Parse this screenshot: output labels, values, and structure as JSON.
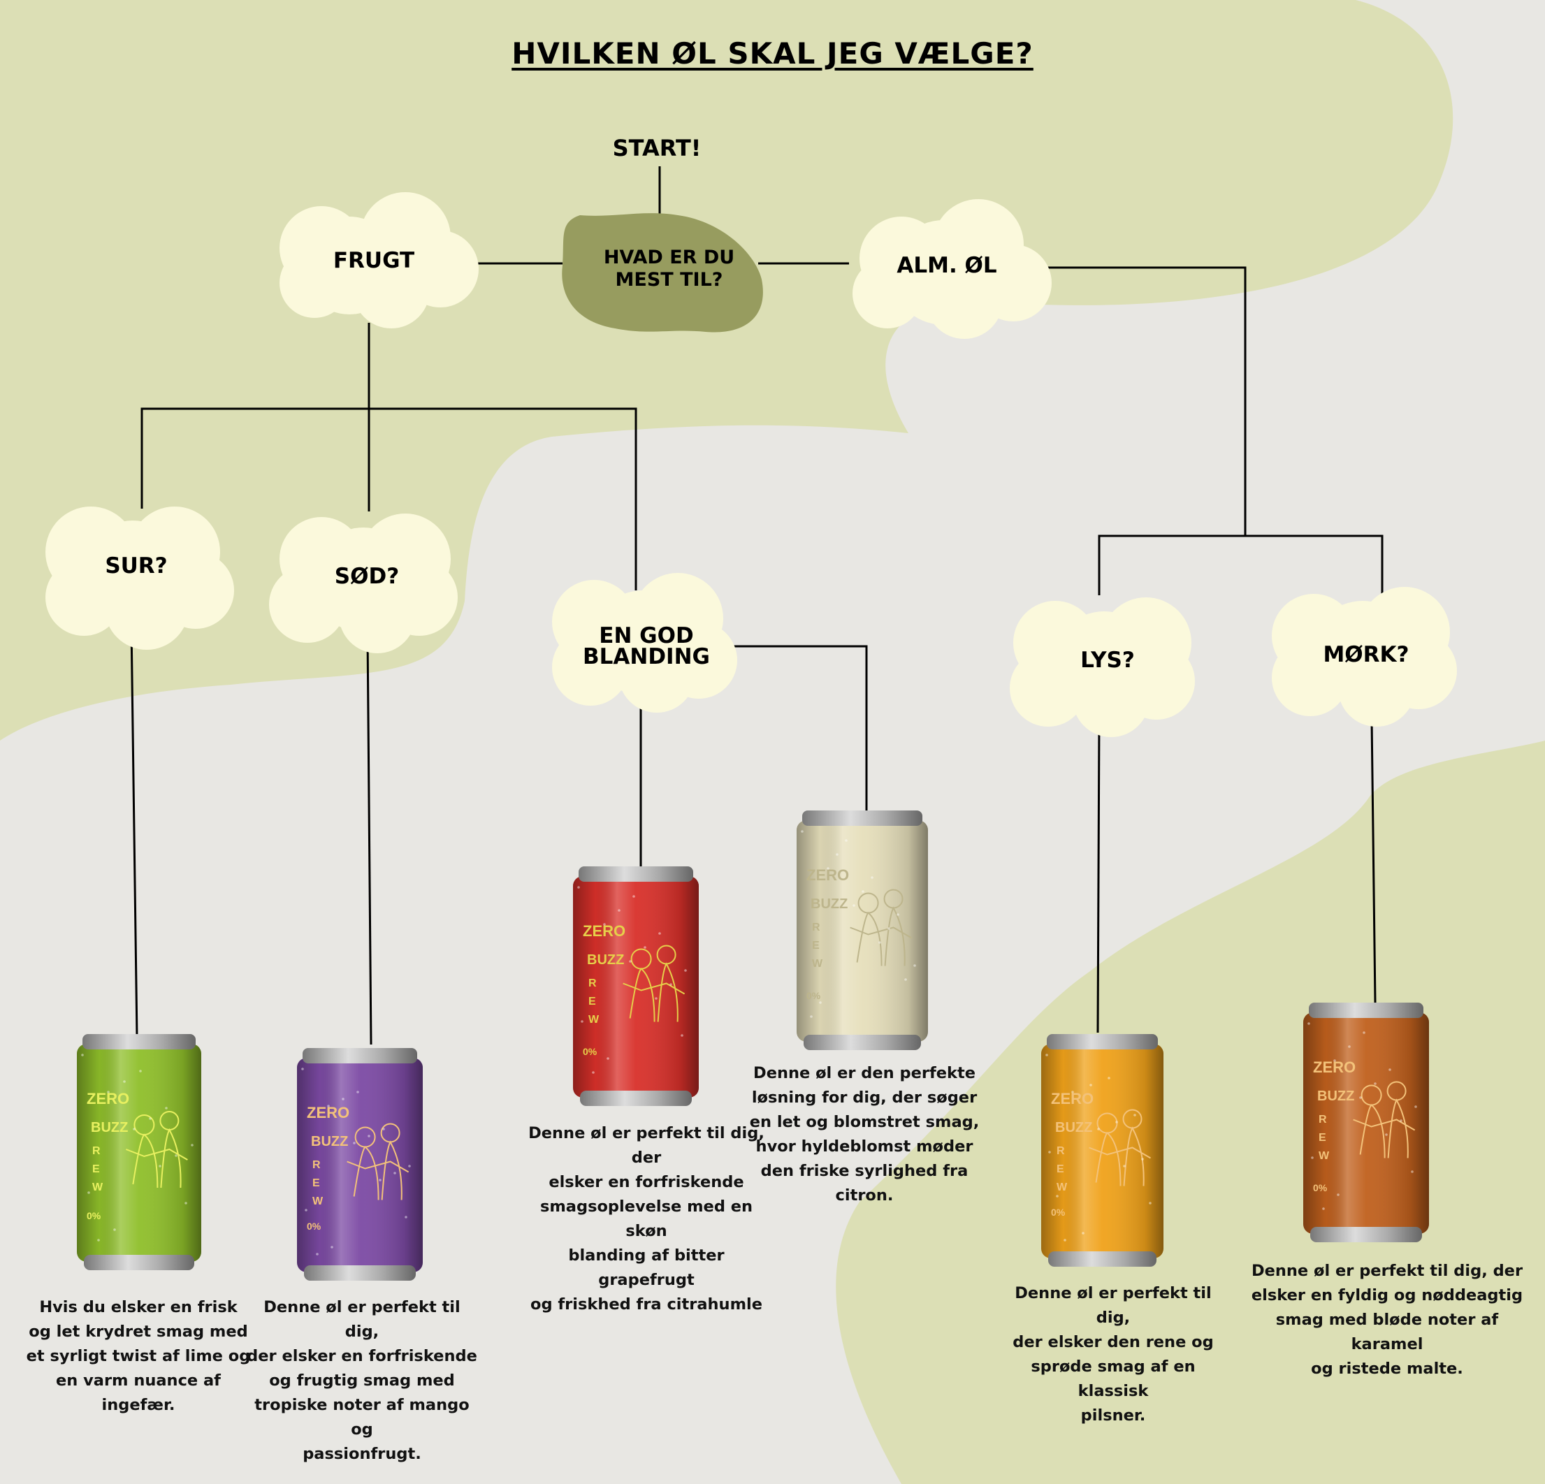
{
  "title": "HVILKEN ØL SKAL JEG VÆLGE?",
  "start_label": "START!",
  "nodes": {
    "question": "HVAD ER DU MEST TIL?",
    "question_line1": "HVAD ER DU",
    "question_line2": "MEST TIL?",
    "fruit": "FRUGT",
    "regular": "ALM. ØL",
    "sour": "SUR?",
    "sweet": "SØD?",
    "mix": "EN GOD BLANDING",
    "mix_line1": "EN GOD",
    "mix_line2": "BLANDING",
    "light": "LYS?",
    "dark": "MØRK?"
  },
  "cans": [
    {
      "id": "green",
      "color": "#8fbf2a",
      "text": "ZERO BUZZ BREW",
      "abv": "0%",
      "description": "Hvis du elsker en frisk og let krydret smag med et syrligt twist af lime og en varm nuance af ingefær.",
      "lines": [
        "Hvis du elsker en frisk",
        "og let krydret smag med",
        "et syrligt twist af lime og",
        "en varm nuance af",
        "ingefær."
      ]
    },
    {
      "id": "purple",
      "color": "#7c4aa4",
      "text": "ZERO BUZZ BREW",
      "abv": "0%",
      "description": "Denne øl er perfekt til dig, der elsker en forfriskende og frugtig smag med tropiske noter af mango og passionfrugt.",
      "lines": [
        "Denne øl er perfekt til dig,",
        "der elsker en forfriskende",
        "og frugtig smag med",
        "tropiske noter af mango og",
        "passionfrugt."
      ]
    },
    {
      "id": "red",
      "color": "#d8302a",
      "text": "ZERO BUZZ BREW",
      "abv": "0%",
      "description": "Denne øl er perfekt til dig, der elsker en forfriskende smagsoplevelse med en skøn blanding af bitter grapefrugt og friskhed fra citrahumle",
      "lines": [
        "Denne øl er perfekt til dig, der",
        "elsker en forfriskende",
        "smagsoplevelse med en skøn",
        "blanding af bitter grapefrugt",
        "og friskhed fra citrahumle"
      ]
    },
    {
      "id": "cream",
      "color": "#e6dfbb",
      "text": "ZERO BUZZ BREW",
      "abv": "0%",
      "description": "Denne øl er den perfekte løsning for dig, der søger en let og blomstret smag, hvor hyldeblomst møder den friske syrlighed fra citron.",
      "lines": [
        "Denne øl er den perfekte",
        "løsning for dig, der søger",
        "en let og blomstret smag,",
        "hvor hyldeblomst møder",
        "den friske syrlighed fra",
        "citron."
      ]
    },
    {
      "id": "orange",
      "color": "#f0a21a",
      "text": "ZERO BUZZ BREW",
      "abv": "0%",
      "description": "Denne øl er perfekt til dig, der elsker den rene og sprøde smag af en klassisk pilsner.",
      "lines": [
        "Denne øl er perfekt til dig,",
        "der elsker den rene og",
        "sprøde smag af en klassisk",
        "pilsner."
      ]
    },
    {
      "id": "brown",
      "color": "#c0601d",
      "text": "ZERO BUZZ BREW",
      "abv": "0%",
      "description": "Denne øl er perfekt til dig, der elsker en fyldig og nøddeagtig smag med bløde noter af karamel og ristede malte.",
      "lines": [
        "Denne øl er perfekt til dig, der",
        "elsker en fyldig og nøddeagtig",
        "smag med bløde noter af karamel",
        "og ristede malte."
      ]
    }
  ],
  "colors": {
    "background": "#e8e7e3",
    "blob": "#dcdfb5",
    "cloud": "#fbf9dc",
    "question_blob": "#979c5f",
    "line": "#000000"
  }
}
